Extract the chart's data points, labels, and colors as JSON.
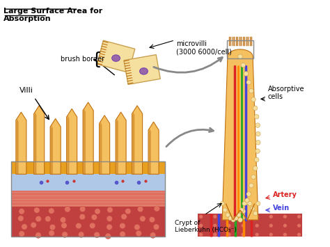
{
  "title": "Large Surface Area for\nAbsorption",
  "title_underline": true,
  "bg_color": "#ffffff",
  "labels": {
    "villi": "Villi",
    "brush_border": "brush border",
    "microvilli": "microvilli\n(3000 6000/cell)",
    "absorptive_cells": "Absorptive\ncells",
    "artery": "Artery",
    "vein": "Vein",
    "crypt": "Crypt of\nLieberkuhn (HCO₃⁻)"
  },
  "colors": {
    "villi_yellow": "#E8A020",
    "villi_light": "#F5C060",
    "villi_dark": "#C07010",
    "layer_blue": "#B0C8E8",
    "layer_red_pink": "#E07060",
    "layer_red_dark": "#C04040",
    "layer_bottom_red": "#C05050",
    "artery_red": "#DD2222",
    "vein_blue": "#4444DD",
    "nerve_green": "#22AA22",
    "nerve_orange": "#FF8800",
    "cell_beige": "#F5E0A0",
    "cell_purple": "#9966AA",
    "brush_color": "#D4B060",
    "crypt_yellow": "#E8A020",
    "arrow_gray": "#888888"
  },
  "figsize": [
    4.74,
    3.55
  ],
  "dpi": 100
}
